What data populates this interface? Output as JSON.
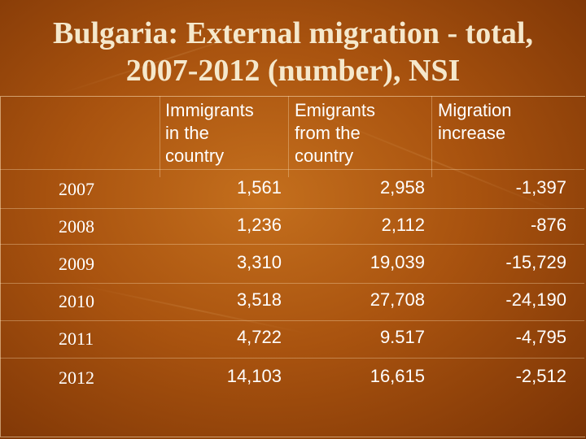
{
  "title_line1": "Bulgaria: External migration - total,",
  "title_line2": "2007-2012 (number), NSI",
  "headers": {
    "immigrants": [
      "Immigrants",
      "in the",
      "country"
    ],
    "emigrants": [
      "Emigrants",
      "from the",
      "country"
    ],
    "increase": [
      "Migration",
      "increase"
    ]
  },
  "rows": [
    {
      "year": "2007",
      "immigrants": "1,561",
      "emigrants": "2,958",
      "increase": "-1,397"
    },
    {
      "year": "2008",
      "immigrants": "1,236",
      "emigrants": "2,112",
      "increase": "-876"
    },
    {
      "year": "2009",
      "immigrants": "3,310",
      "emigrants": "19,039",
      "increase": "-15,729"
    },
    {
      "year": "2010",
      "immigrants": "3,518",
      "emigrants": "27,708",
      "increase": "-24,190"
    },
    {
      "year": "2011",
      "immigrants": "4,722",
      "emigrants": "9.517",
      "increase": "-4,795"
    },
    {
      "year": "2012",
      "immigrants": "14,103",
      "emigrants": "16,615",
      "increase": "-2,512"
    }
  ]
}
